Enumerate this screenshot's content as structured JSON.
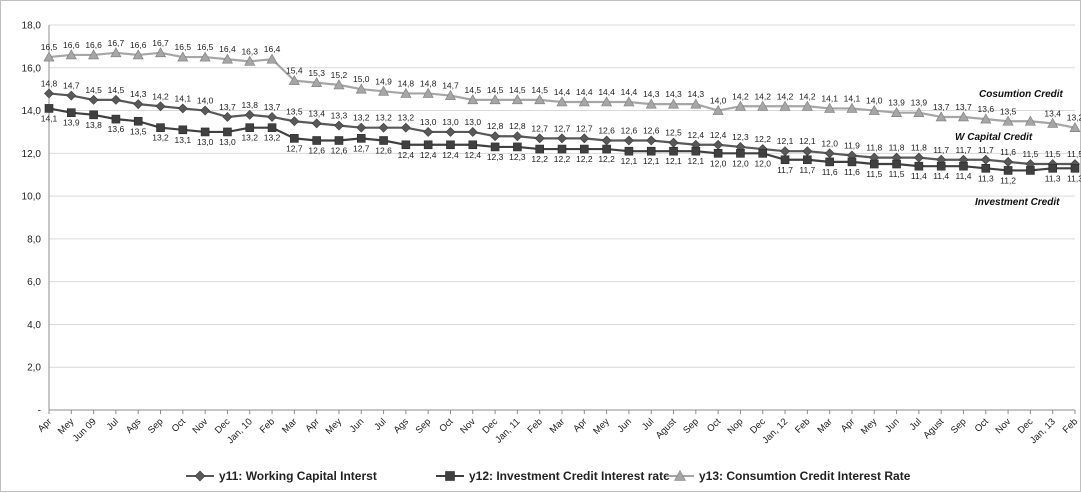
{
  "chart_data": {
    "type": "line",
    "categories": [
      "Apr",
      "Mey",
      "Jun 09",
      "Jul",
      "Ags",
      "Sep",
      "Oct",
      "Nov",
      "Dec",
      "Jan, 10",
      "Feb",
      "Mar",
      "Apr",
      "Mey",
      "Jun",
      "Jul",
      "Ags",
      "Sep",
      "Oct",
      "Nov",
      "Dec",
      "Jan, 11",
      "Feb",
      "Mar",
      "Apr",
      "Mey",
      "Jun",
      "Jul",
      "Agust",
      "Sep",
      "Oct",
      "Nop",
      "Dec",
      "Jan, 12",
      "Feb",
      "Mar",
      "Apr",
      "Mey",
      "Jun",
      "Jul",
      "Agust",
      "Sep",
      "Oct",
      "Nov",
      "Dec",
      "Jan, 13",
      "Feb"
    ],
    "y_ticks": [
      "-",
      "2,0",
      "4,0",
      "6,0",
      "8,0",
      "10,0",
      "12,0",
      "14,0",
      "16,0",
      "18,0"
    ],
    "ylim": [
      0,
      18
    ],
    "grid": "horizontal",
    "legend_position": "bottom",
    "series": [
      {
        "name": "y11: Working Capital Interst",
        "marker": "diamond",
        "color": "#595959",
        "values": [
          14.8,
          14.7,
          14.5,
          14.5,
          14.3,
          14.2,
          14.1,
          14.0,
          13.7,
          13.8,
          13.7,
          13.5,
          13.4,
          13.3,
          13.2,
          13.2,
          13.2,
          13.0,
          13.0,
          13.0,
          12.8,
          12.8,
          12.7,
          12.7,
          12.7,
          12.6,
          12.6,
          12.6,
          12.5,
          12.4,
          12.4,
          12.3,
          12.2,
          12.1,
          12.1,
          12.0,
          11.9,
          11.8,
          11.8,
          11.8,
          11.7,
          11.7,
          11.7,
          11.6,
          11.5,
          11.5,
          11.5
        ],
        "labels": [
          "14,8",
          "14,7",
          "14,5",
          "14,5",
          "14,3",
          "14,2",
          "14,1",
          "14,0",
          "13,7",
          "13,8",
          "13,7",
          "13,5",
          "13,4",
          "13,3",
          "13,2",
          "13,2",
          "13,2",
          "13,0",
          "13,0",
          "13,0",
          "12,8",
          "12,8",
          "12,7",
          "12,7",
          "12,7",
          "12,6",
          "12,6",
          "12,6",
          "12,5",
          "12,4",
          "12,4",
          "12,3",
          "12,2",
          "12,1",
          "12,1",
          "12,0",
          "11,9",
          "11,8",
          "11,8",
          "11,8",
          "11,7",
          "11,7",
          "11,7",
          "11,6",
          "11,5",
          "11,5",
          "11,5"
        ]
      },
      {
        "name": "y12: Investment Credit Interest rate",
        "marker": "square",
        "color": "#404040",
        "values": [
          14.1,
          13.9,
          13.8,
          13.6,
          13.5,
          13.2,
          13.1,
          13.0,
          13.0,
          13.2,
          13.2,
          12.7,
          12.6,
          12.6,
          12.7,
          12.6,
          12.4,
          12.4,
          12.4,
          12.4,
          12.3,
          12.3,
          12.2,
          12.2,
          12.2,
          12.2,
          12.1,
          12.1,
          12.1,
          12.1,
          12.0,
          12.0,
          12.0,
          11.7,
          11.7,
          11.6,
          11.6,
          11.5,
          11.5,
          11.4,
          11.4,
          11.4,
          11.3,
          11.2,
          11.2,
          11.3,
          11.3
        ],
        "labels": [
          "14,1",
          "13,9",
          "13,8",
          "13,6",
          "13,5",
          "13,2",
          "13,1",
          "13,0",
          "13,0",
          "13,2",
          "13,2",
          "12,7",
          "12,6",
          "12,6",
          "12,7",
          "12,6",
          "12,4",
          "12,4",
          "12,4",
          "12,4",
          "12,3",
          "12,3",
          "12,2",
          "12,2",
          "12,2",
          "12,2",
          "12,1",
          "12,1",
          "12,1",
          "12,1",
          "12,0",
          "12,0",
          "12,0",
          "11,7",
          "11,7",
          "11,6",
          "11,6",
          "11,5",
          "11,5",
          "11,4",
          "11,4",
          "11,4",
          "11,3",
          "11,2",
          "",
          "11,3",
          "11,3"
        ]
      },
      {
        "name": "y13: Consumtion Credit Interest Rate",
        "marker": "triangle",
        "color": "#a6a6a6",
        "values": [
          16.5,
          16.6,
          16.6,
          16.7,
          16.6,
          16.7,
          16.5,
          16.5,
          16.4,
          16.3,
          16.4,
          15.4,
          15.3,
          15.2,
          15.0,
          14.9,
          14.8,
          14.8,
          14.7,
          14.5,
          14.5,
          14.5,
          14.5,
          14.4,
          14.4,
          14.4,
          14.4,
          14.3,
          14.3,
          14.3,
          14.0,
          14.2,
          14.2,
          14.2,
          14.2,
          14.1,
          14.1,
          14.0,
          13.9,
          13.9,
          13.7,
          13.7,
          13.6,
          13.5,
          13.5,
          13.4,
          13.2
        ],
        "labels": [
          "16,5",
          "16,6",
          "16,6",
          "16,7",
          "16,6",
          "16,7",
          "16,5",
          "16,5",
          "16,4",
          "16,3",
          "16,4",
          "15,4",
          "15,3",
          "15,2",
          "15,0",
          "14,9",
          "14,8",
          "14,8",
          "14,7",
          "14,5",
          "14,5",
          "14,5",
          "14,5",
          "14,4",
          "14,4",
          "14,4",
          "14,4",
          "14,3",
          "14,3",
          "14,3",
          "14,0",
          "14,2",
          "14,2",
          "14,2",
          "14,2",
          "14,1",
          "14,1",
          "14,0",
          "13,9",
          "13,9",
          "13,7",
          "13,7",
          "13,6",
          "13,5",
          "",
          "13,4",
          "13,2"
        ]
      }
    ],
    "annotations": {
      "consumption": "Cosumtion Credit",
      "working": "W Capital Credit",
      "investment": "Investment Credit"
    }
  }
}
